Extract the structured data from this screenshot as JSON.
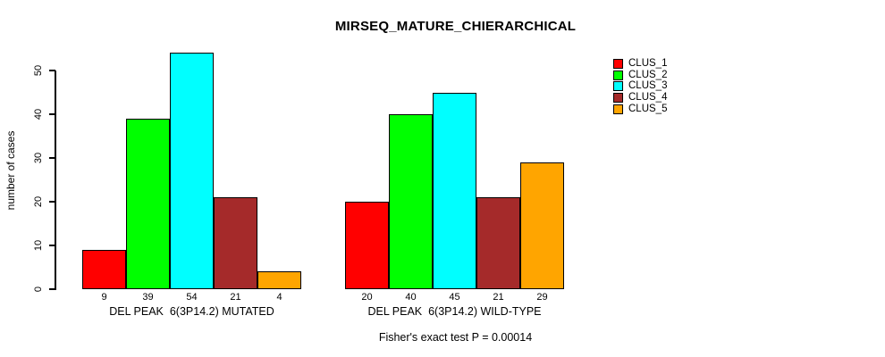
{
  "chart_data": {
    "type": "bar",
    "title": "MIRSEQ_MATURE_CHIERARCHICAL",
    "ylabel": "number of cases",
    "xlabel": "",
    "ylim": [
      0,
      50
    ],
    "yticks": [
      0,
      10,
      20,
      30,
      40,
      50
    ],
    "grid": false,
    "legend_position": "top-right",
    "annotation": "Fisher's exact test P = 0.00014",
    "series_names": [
      "CLUS_1",
      "CLUS_2",
      "CLUS_3",
      "CLUS_4",
      "CLUS_5"
    ],
    "series_colors": [
      "#FF0000",
      "#00FF00",
      "#00FFFF",
      "#A52A2A",
      "#FFA500"
    ],
    "groups": [
      {
        "label": "DEL PEAK  6(3P14.2) MUTATED",
        "values": [
          9,
          39,
          54,
          21,
          4
        ]
      },
      {
        "label": "DEL PEAK  6(3P14.2) WILD-TYPE",
        "values": [
          20,
          40,
          45,
          21,
          29
        ]
      }
    ]
  }
}
